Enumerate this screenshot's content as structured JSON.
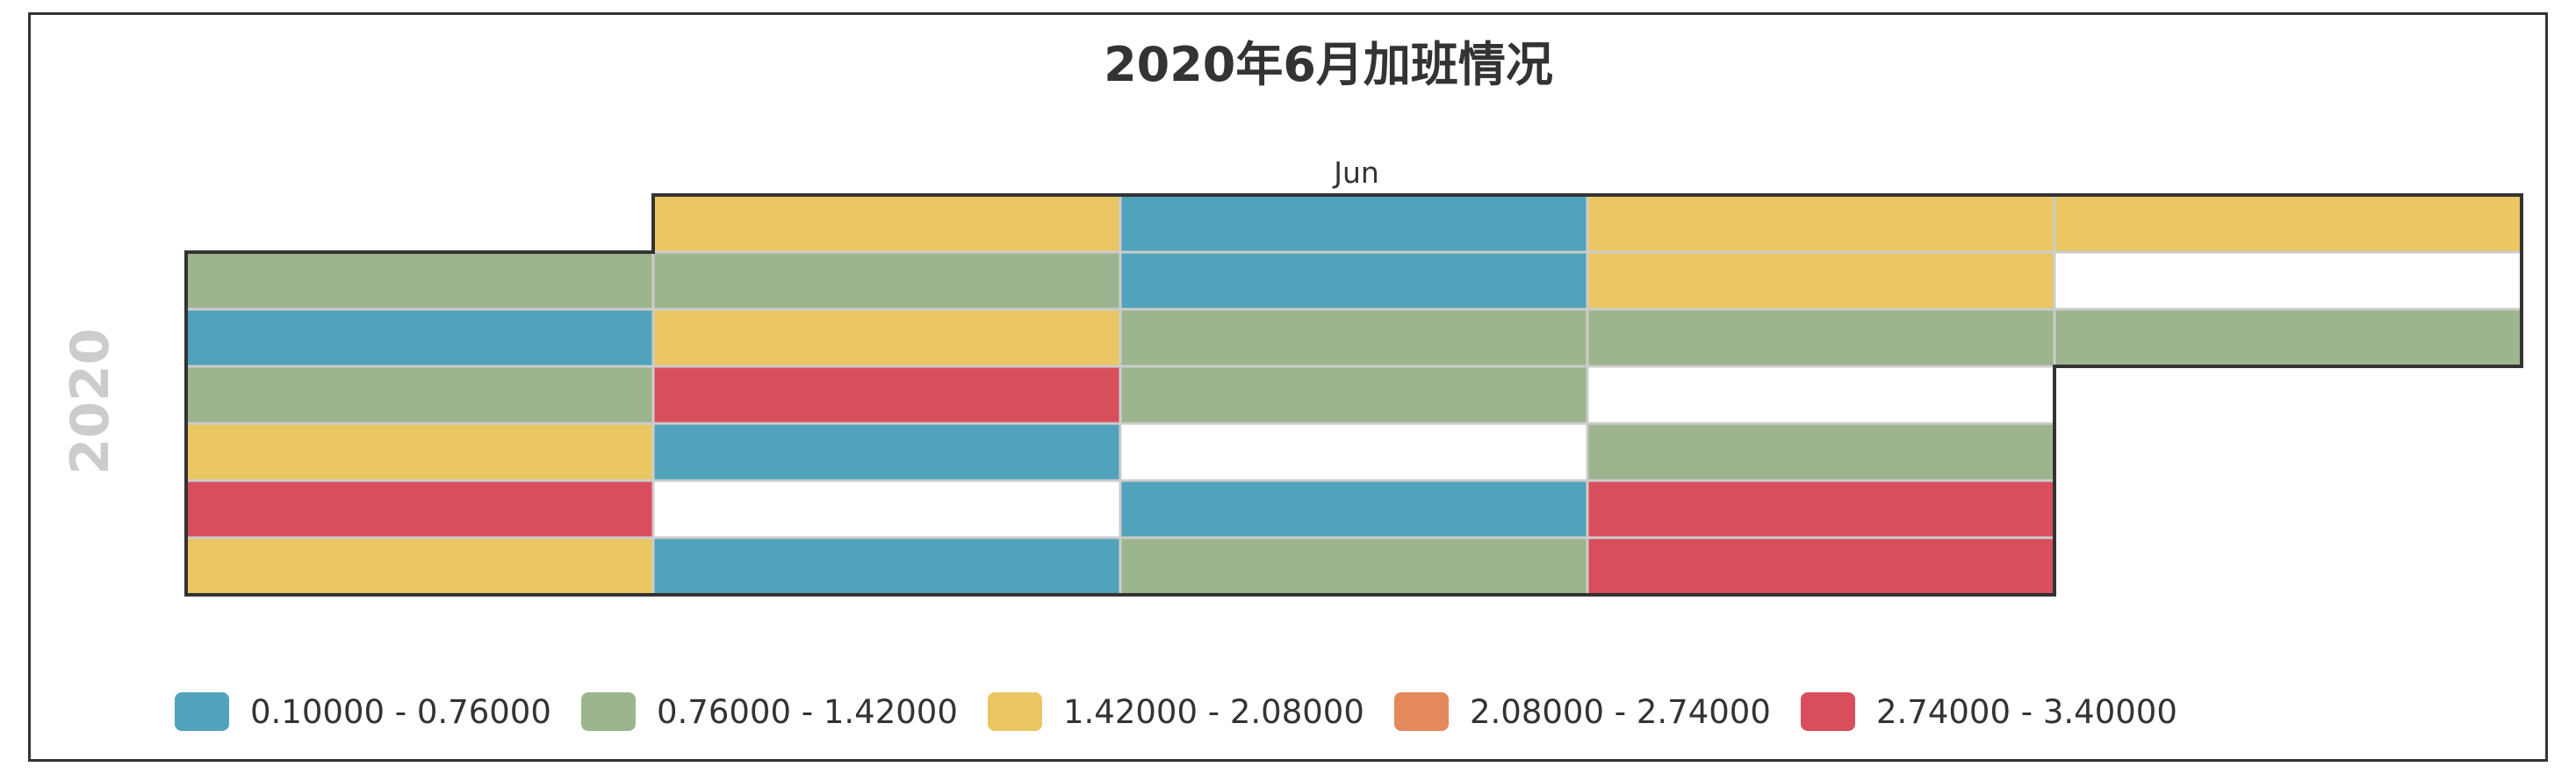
{
  "chart_data": {
    "type": "heatmap",
    "subtype": "calendar",
    "title": "2020年6月加班情况",
    "year_label": "2020",
    "month_label": "Jun",
    "orientation": "horizontal",
    "year": 2020,
    "month": 6,
    "weekday_start": "Sunday",
    "range": [
      "2020-06-01",
      "2020-06-30"
    ],
    "pieces": [
      {
        "label": "0.10000 - 0.76000",
        "min": 0.1,
        "max": 0.76,
        "color": "#50a3ba"
      },
      {
        "label": "0.76000 - 1.42000",
        "min": 0.76,
        "max": 1.42,
        "color": "#9db58e"
      },
      {
        "label": "1.42000 - 2.08000",
        "min": 1.42,
        "max": 2.08,
        "color": "#eac763"
      },
      {
        "label": "2.08000 - 2.74000",
        "min": 2.08,
        "max": 2.74,
        "color": "#e4895c"
      },
      {
        "label": "2.74000 - 3.40000",
        "min": 2.74,
        "max": 3.4,
        "color": "#d94e5d"
      }
    ],
    "legend_position": "bottom-left",
    "values": [
      [
        "2020-06-01",
        1.1
      ],
      [
        "2020-06-02",
        0.4
      ],
      [
        "2020-06-03",
        1.1
      ],
      [
        "2020-06-04",
        1.8
      ],
      [
        "2020-06-05",
        3.0
      ],
      [
        "2020-06-06",
        1.8
      ],
      [
        "2020-06-07",
        1.8
      ],
      [
        "2020-06-08",
        1.1
      ],
      [
        "2020-06-09",
        1.8
      ],
      [
        "2020-06-10",
        3.0
      ],
      [
        "2020-06-11",
        0.4
      ],
      [
        "2020-06-13",
        0.4
      ],
      [
        "2020-06-14",
        0.4
      ],
      [
        "2020-06-15",
        0.4
      ],
      [
        "2020-06-16",
        1.1
      ],
      [
        "2020-06-17",
        1.1
      ],
      [
        "2020-06-19",
        0.4
      ],
      [
        "2020-06-20",
        1.1
      ],
      [
        "2020-06-21",
        1.8
      ],
      [
        "2020-06-22",
        1.8
      ],
      [
        "2020-06-23",
        1.1
      ],
      [
        "2020-06-25",
        1.1
      ],
      [
        "2020-06-26",
        3.0
      ],
      [
        "2020-06-27",
        3.0
      ],
      [
        "2020-06-28",
        1.8
      ],
      [
        "2020-06-30",
        1.1
      ]
    ]
  }
}
